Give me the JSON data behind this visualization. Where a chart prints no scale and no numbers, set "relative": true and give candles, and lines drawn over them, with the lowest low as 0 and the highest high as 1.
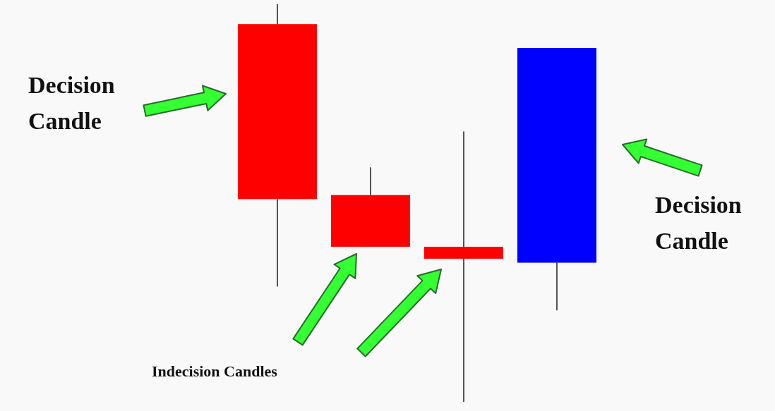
{
  "chart_data": {
    "type": "candlestick",
    "relative": true,
    "categories": [
      null,
      null,
      null,
      null
    ],
    "ohlc": [
      [
        0.95,
        1,
        0.29,
        0.51
      ],
      [
        0.52,
        0.59,
        0.39,
        0.39
      ],
      [
        0.39,
        0.68,
        0,
        0.36
      ],
      [
        0.35,
        0.89,
        0.23,
        0.89
      ]
    ],
    "colors": [
      "#ff0000",
      "#ff0000",
      "#ff0000",
      "#0000ff"
    ],
    "annotations": [
      "Decision Candle",
      "Indecision Candles",
      "Decision Candle"
    ]
  }
}
